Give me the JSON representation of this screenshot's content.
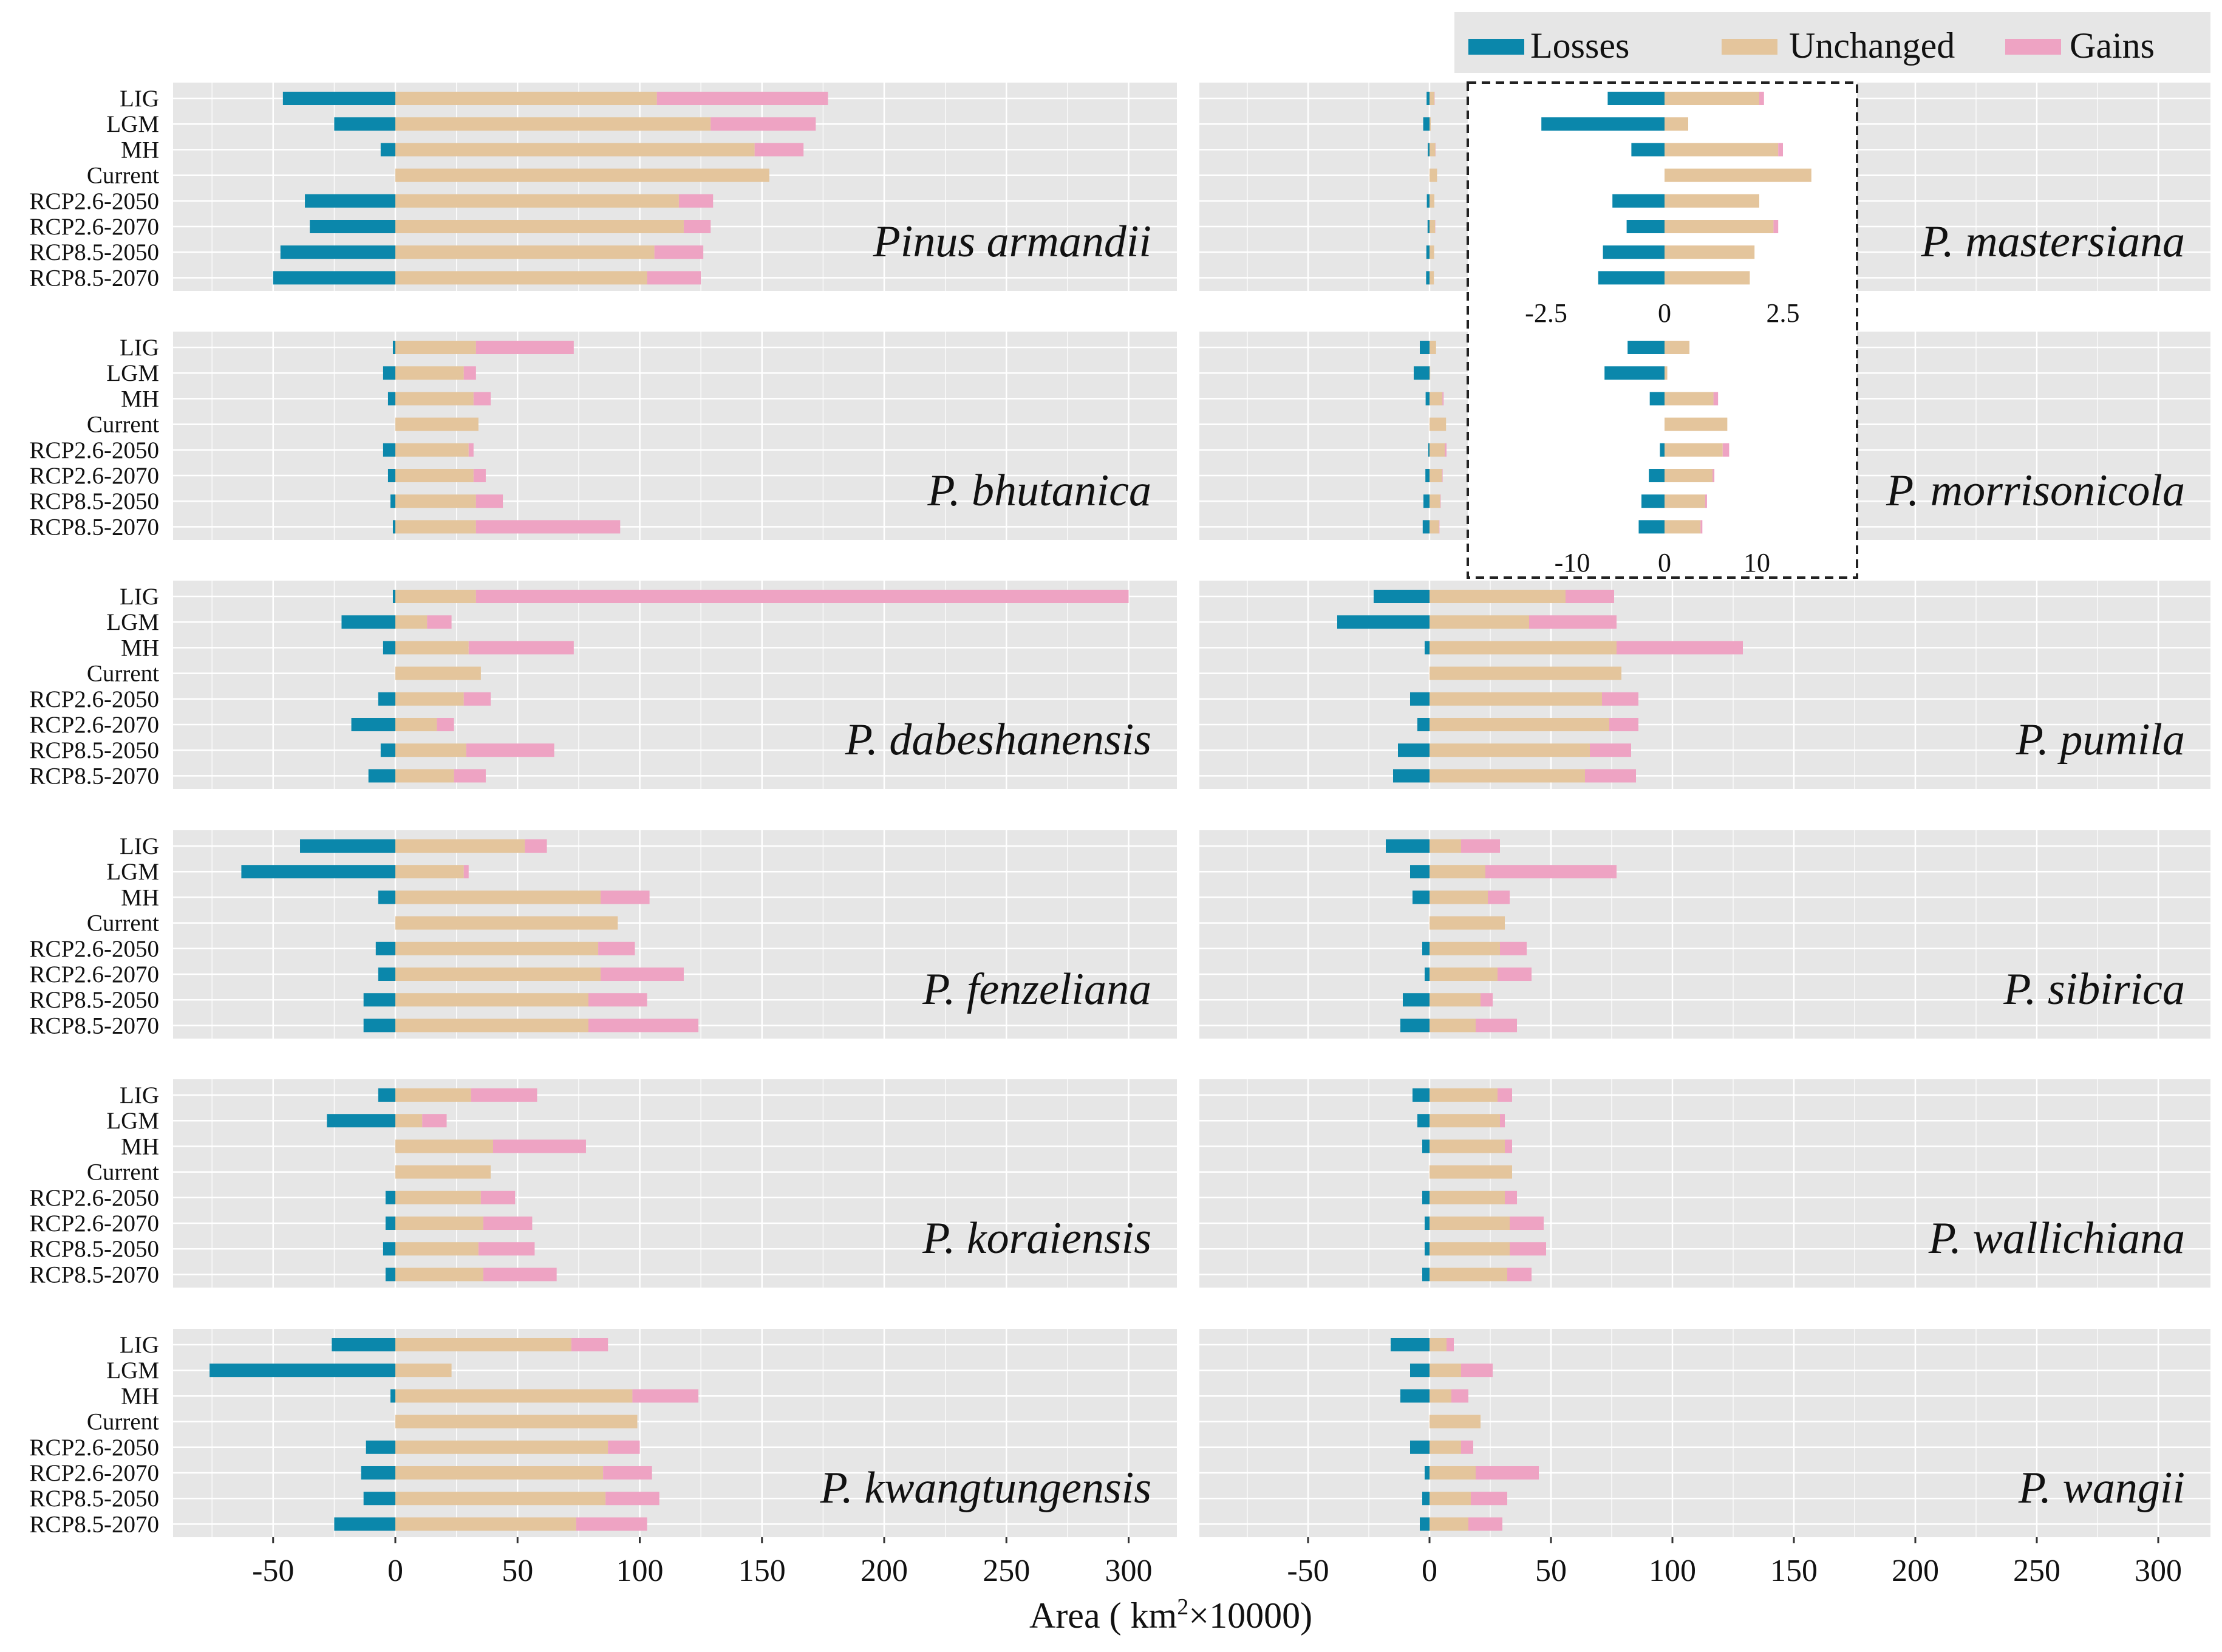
{
  "legend": {
    "items": [
      {
        "key": "losses",
        "label": "Losses",
        "color": "#0b87ab"
      },
      {
        "key": "unchanged",
        "label": "Unchanged",
        "color": "#e4c59c"
      },
      {
        "key": "gains",
        "label": "Gains",
        "color": "#eea3c3"
      }
    ]
  },
  "axis": {
    "xlabel_pre": "Area ( km",
    "xlabel_sup": "2",
    "xlabel_post": "×10000)",
    "ticks": [
      "-50",
      "0",
      "50",
      "100",
      "150",
      "200",
      "250",
      "300"
    ]
  },
  "inset": {
    "top_ticks": [
      "-2.5",
      "0",
      "2.5"
    ],
    "bottom_ticks": [
      "-10",
      "0",
      "10"
    ]
  },
  "chart_data": {
    "type": "bar",
    "orientation": "horizontal",
    "stacked": true,
    "xlabel": "Area ( km2×10000)",
    "xlim": [
      -90,
      320
    ],
    "xticks": [
      -50,
      0,
      50,
      100,
      150,
      200,
      250,
      300
    ],
    "categories": [
      "LIG",
      "LGM",
      "MH",
      "Current",
      "RCP2.6-2050",
      "RCP2.6-2070",
      "RCP8.5-2050",
      "RCP8.5-2070"
    ],
    "series_names": [
      "Losses",
      "Unchanged",
      "Gains"
    ],
    "panels": [
      {
        "name": "Pinus armandii",
        "column": "left",
        "losses": [
          -46,
          -25,
          -6,
          0,
          -37,
          -35,
          -47,
          -50
        ],
        "unchanged": [
          107,
          129,
          147,
          153,
          116,
          118,
          106,
          103
        ],
        "gains": [
          70,
          43,
          20,
          0,
          14,
          11,
          20,
          22
        ]
      },
      {
        "name": "P. bhutanica",
        "column": "left",
        "losses": [
          -1,
          -5,
          -3,
          0,
          -5,
          -3,
          -2,
          -1
        ],
        "unchanged": [
          33,
          28,
          32,
          34,
          30,
          32,
          33,
          33
        ],
        "gains": [
          40,
          5,
          7,
          0,
          2,
          5,
          11,
          59
        ]
      },
      {
        "name": "P. dabeshanensis",
        "column": "left",
        "losses": [
          -1,
          -22,
          -5,
          0,
          -7,
          -18,
          -6,
          -11
        ],
        "unchanged": [
          33,
          13,
          30,
          35,
          28,
          17,
          29,
          24
        ],
        "gains": [
          267,
          10,
          43,
          0,
          11,
          7,
          36,
          13
        ]
      },
      {
        "name": "P. fenzeliana",
        "column": "left",
        "losses": [
          -39,
          -63,
          -7,
          0,
          -8,
          -7,
          -13,
          -13
        ],
        "unchanged": [
          53,
          28,
          84,
          91,
          83,
          84,
          79,
          79
        ],
        "gains": [
          9,
          2,
          20,
          0,
          15,
          34,
          24,
          45
        ]
      },
      {
        "name": "P. koraiensis",
        "column": "left",
        "losses": [
          -7,
          -28,
          0,
          0,
          -4,
          -4,
          -5,
          -4
        ],
        "unchanged": [
          31,
          11,
          40,
          39,
          35,
          36,
          34,
          36
        ],
        "gains": [
          27,
          10,
          38,
          0,
          14,
          20,
          23,
          30
        ]
      },
      {
        "name": "P. kwangtungensis",
        "column": "left",
        "losses": [
          -26,
          -76,
          -2,
          0,
          -12,
          -14,
          -13,
          -25
        ],
        "unchanged": [
          72,
          23,
          97,
          99,
          87,
          85,
          86,
          74
        ],
        "gains": [
          15,
          0,
          27,
          0,
          13,
          20,
          22,
          29
        ]
      },
      {
        "name": "P. mastersiana",
        "column": "right",
        "losses": [
          -1.2,
          -2.6,
          -0.7,
          0,
          -1.1,
          -0.8,
          -1.3,
          -1.4
        ],
        "unchanged": [
          2.0,
          0.5,
          2.4,
          3.1,
          2.0,
          2.3,
          1.9,
          1.8
        ],
        "gains": [
          0.1,
          0,
          0.1,
          0,
          0,
          0.1,
          0,
          0
        ]
      },
      {
        "name": "P. morrisonicola",
        "column": "right",
        "losses": [
          -4,
          -6.5,
          -1.6,
          0,
          -0.5,
          -1.7,
          -2.5,
          -2.8
        ],
        "unchanged": [
          2.7,
          0.3,
          5.3,
          6.8,
          6.3,
          5.2,
          4.4,
          3.9
        ],
        "gains": [
          0,
          0,
          0.5,
          0,
          0.7,
          0.2,
          0.2,
          0.2
        ]
      },
      {
        "name": "P. pumila",
        "column": "right",
        "losses": [
          -23,
          -38,
          -2,
          0,
          -8,
          -5,
          -13,
          -15
        ],
        "unchanged": [
          56,
          41,
          77,
          79,
          71,
          74,
          66,
          64
        ],
        "gains": [
          20,
          36,
          52,
          0,
          15,
          12,
          17,
          21
        ]
      },
      {
        "name": "P. sibirica",
        "column": "right",
        "losses": [
          -18,
          -8,
          -7,
          0,
          -3,
          -2,
          -11,
          -12
        ],
        "unchanged": [
          13,
          23,
          24,
          31,
          29,
          28,
          21,
          19
        ],
        "gains": [
          16,
          54,
          9,
          0,
          11,
          14,
          5,
          17
        ]
      },
      {
        "name": "P. wallichiana",
        "column": "right",
        "losses": [
          -7,
          -5,
          -3,
          0,
          -3,
          -2,
          -2,
          -3
        ],
        "unchanged": [
          28,
          29,
          31,
          34,
          31,
          33,
          33,
          32
        ],
        "gains": [
          6,
          2,
          3,
          0,
          5,
          14,
          15,
          10
        ]
      },
      {
        "name": "P. wangii",
        "column": "right",
        "losses": [
          -16,
          -8,
          -12,
          0,
          -8,
          -2,
          -3,
          -4
        ],
        "unchanged": [
          7,
          13,
          9,
          21,
          13,
          19,
          17,
          16
        ],
        "gains": [
          3,
          13,
          7,
          0,
          5,
          26,
          15,
          14
        ]
      }
    ],
    "inset": {
      "style": "dashed box, enlarged view of P. mastersiana (top) and P. morrisonicola (bottom)",
      "top_xticks": [
        -2.5,
        0,
        2.5
      ],
      "bottom_xticks": [
        -10,
        0,
        10
      ]
    }
  }
}
